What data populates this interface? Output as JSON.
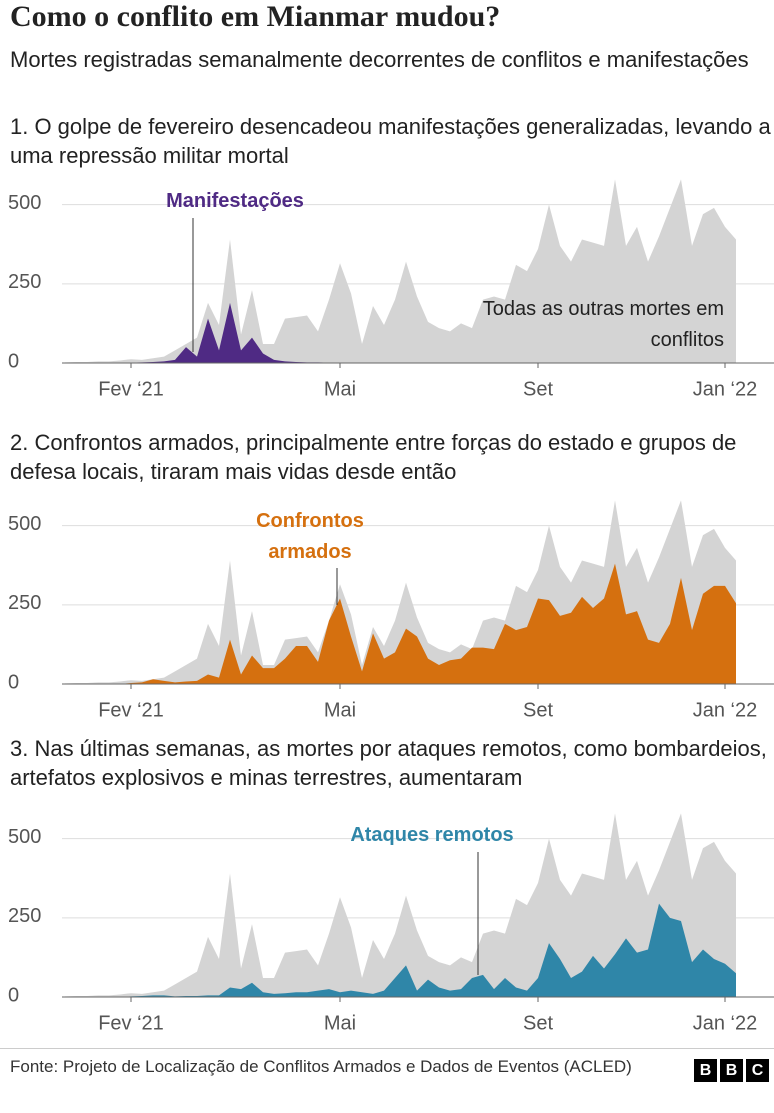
{
  "title": "Como o conflito em Mianmar mudou?",
  "subtitle": "Mortes registradas semanalmente decorrentes de conflitos e manifestações",
  "source": "Fonte: Projeto de Localização de Conflitos Armados e Dados de Eventos (ACLED)",
  "logo": [
    "B",
    "B",
    "C"
  ],
  "chart_data": [
    {
      "type": "area",
      "title": "1. O golpe de fevereiro desencadeou manifestações generalizadas, levando a uma repressão militar mortal",
      "categories": [
        null,
        null,
        null,
        null,
        null,
        null,
        "Fev ‘21",
        null,
        null,
        null,
        null,
        null,
        null,
        null,
        null,
        null,
        null,
        null,
        null,
        null,
        null,
        null,
        null,
        null,
        null,
        "Mai",
        null,
        null,
        null,
        null,
        null,
        null,
        null,
        null,
        null,
        null,
        null,
        null,
        null,
        null,
        null,
        null,
        null,
        "Set",
        null,
        null,
        null,
        null,
        null,
        null,
        null,
        null,
        null,
        null,
        null,
        null,
        null,
        null,
        null,
        null,
        "Jan ‘22",
        null
      ],
      "ylim": [
        0,
        600
      ],
      "yticks": [
        0,
        250,
        500
      ],
      "grid": true,
      "series": [
        {
          "name": "Todas as outras mortes em conflitos",
          "color": "#d4d4d4",
          "values": [
            2,
            3,
            3,
            5,
            5,
            8,
            12,
            10,
            15,
            20,
            40,
            60,
            80,
            190,
            120,
            390,
            90,
            230,
            60,
            60,
            140,
            145,
            150,
            100,
            200,
            315,
            220,
            60,
            180,
            120,
            200,
            320,
            210,
            130,
            110,
            100,
            125,
            110,
            200,
            210,
            200,
            310,
            290,
            360,
            500,
            370,
            320,
            390,
            380,
            370,
            580,
            370,
            430,
            320,
            400,
            490,
            580,
            370,
            470,
            490,
            430,
            390
          ]
        },
        {
          "name": "Manifestações",
          "color": "#4f2a84",
          "values": [
            0,
            0,
            0,
            0,
            0,
            1,
            1,
            2,
            3,
            5,
            10,
            50,
            20,
            140,
            40,
            190,
            40,
            80,
            30,
            10,
            5,
            3,
            2,
            2,
            1,
            1,
            1,
            0,
            0,
            0,
            1,
            0,
            0,
            0,
            0,
            0,
            0,
            0,
            0,
            0,
            0,
            0,
            0,
            0,
            0,
            0,
            0,
            0,
            0,
            0,
            0,
            0,
            0,
            0,
            0,
            0,
            0,
            0,
            0,
            0,
            0,
            0
          ]
        }
      ]
    },
    {
      "type": "area",
      "title": "2. Confrontos armados, principalmente entre forças do estado e grupos de defesa locais, tiraram mais vidas desde então",
      "categories": [
        null,
        null,
        null,
        null,
        null,
        null,
        "Fev ‘21",
        null,
        null,
        null,
        null,
        null,
        null,
        null,
        null,
        null,
        null,
        null,
        null,
        null,
        null,
        null,
        null,
        null,
        null,
        "Mai",
        null,
        null,
        null,
        null,
        null,
        null,
        null,
        null,
        null,
        null,
        null,
        null,
        null,
        null,
        null,
        null,
        null,
        "Set",
        null,
        null,
        null,
        null,
        null,
        null,
        null,
        null,
        null,
        null,
        null,
        null,
        null,
        null,
        null,
        null,
        "Jan ‘22",
        null
      ],
      "ylim": [
        0,
        600
      ],
      "yticks": [
        0,
        250,
        500
      ],
      "grid": true,
      "series": [
        {
          "color": "#d4d4d4",
          "values": [
            2,
            3,
            3,
            5,
            5,
            8,
            12,
            10,
            15,
            20,
            40,
            60,
            80,
            190,
            120,
            390,
            90,
            230,
            60,
            60,
            140,
            145,
            150,
            100,
            200,
            315,
            220,
            60,
            180,
            120,
            200,
            320,
            210,
            130,
            110,
            100,
            125,
            110,
            200,
            210,
            200,
            310,
            290,
            360,
            500,
            370,
            320,
            390,
            380,
            370,
            580,
            370,
            430,
            320,
            400,
            490,
            580,
            370,
            470,
            490,
            430,
            390
          ]
        },
        {
          "name": "Confrontos armados",
          "color": "#d5700f",
          "values": [
            0,
            0,
            0,
            0,
            0,
            0,
            3,
            5,
            15,
            10,
            5,
            8,
            10,
            30,
            20,
            140,
            30,
            90,
            50,
            50,
            80,
            120,
            120,
            70,
            200,
            270,
            150,
            40,
            160,
            80,
            100,
            175,
            150,
            80,
            60,
            75,
            80,
            115,
            115,
            110,
            190,
            170,
            180,
            270,
            265,
            215,
            225,
            275,
            240,
            270,
            380,
            220,
            230,
            140,
            130,
            190,
            335,
            170,
            285,
            310,
            310,
            255
          ]
        }
      ]
    },
    {
      "type": "area",
      "title": "3. Nas últimas semanas, as mortes por ataques remotos, como bombardeios, artefatos explosivos e minas terrestres, aumentaram",
      "categories": [
        null,
        null,
        null,
        null,
        null,
        null,
        "Fev ‘21",
        null,
        null,
        null,
        null,
        null,
        null,
        null,
        null,
        null,
        null,
        null,
        null,
        null,
        null,
        null,
        null,
        null,
        null,
        "Mai",
        null,
        null,
        null,
        null,
        null,
        null,
        null,
        null,
        null,
        null,
        null,
        null,
        null,
        null,
        null,
        null,
        null,
        "Set",
        null,
        null,
        null,
        null,
        null,
        null,
        null,
        null,
        null,
        null,
        null,
        null,
        null,
        null,
        null,
        null,
        "Jan ‘22",
        null
      ],
      "ylim": [
        0,
        600
      ],
      "yticks": [
        0,
        250,
        500
      ],
      "grid": true,
      "series": [
        {
          "color": "#d4d4d4",
          "values": [
            2,
            3,
            3,
            5,
            5,
            8,
            12,
            10,
            15,
            20,
            40,
            60,
            80,
            190,
            120,
            390,
            90,
            230,
            60,
            60,
            140,
            145,
            150,
            100,
            200,
            315,
            220,
            60,
            180,
            120,
            200,
            320,
            210,
            130,
            110,
            100,
            125,
            110,
            200,
            210,
            200,
            310,
            290,
            360,
            500,
            370,
            320,
            390,
            380,
            370,
            580,
            370,
            430,
            320,
            400,
            490,
            580,
            370,
            470,
            490,
            430,
            390
          ]
        },
        {
          "name": "Ataques remotos",
          "color": "#2f86a8",
          "values": [
            0,
            0,
            0,
            0,
            0,
            0,
            2,
            3,
            5,
            5,
            2,
            3,
            3,
            5,
            5,
            30,
            25,
            45,
            15,
            10,
            12,
            15,
            15,
            20,
            25,
            15,
            20,
            15,
            10,
            20,
            60,
            100,
            20,
            55,
            30,
            20,
            25,
            60,
            70,
            25,
            60,
            30,
            20,
            60,
            170,
            120,
            60,
            80,
            130,
            90,
            135,
            185,
            140,
            150,
            295,
            250,
            240,
            110,
            150,
            120,
            105,
            75
          ]
        }
      ]
    }
  ]
}
